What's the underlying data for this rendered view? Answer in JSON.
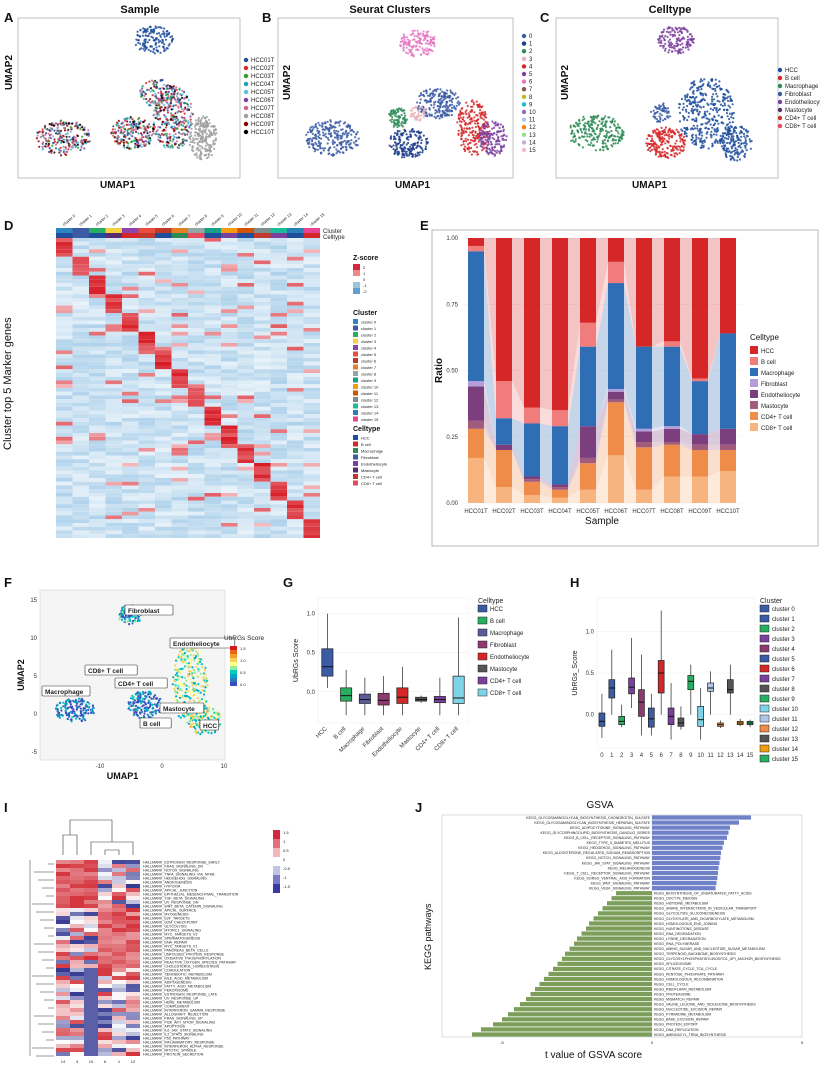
{
  "panels": {
    "a": {
      "letter": "A",
      "title": "Sample",
      "xlabel": "UMAP1",
      "ylabel": "UMAP2",
      "legend": [
        "HCC01T",
        "HCC02T",
        "HCC03T",
        "HCC04T",
        "HCC05T",
        "HCC06T",
        "HCC07T",
        "HCC08T",
        "HCC09T",
        "HCC10T"
      ],
      "colors": [
        "#1f4e9c",
        "#d62728",
        "#2ca02c",
        "#17a2b8",
        "#5bc0de",
        "#7b3f9e",
        "#d35f8d",
        "#9e9e9e",
        "#8b0000",
        "#000000"
      ]
    },
    "b": {
      "letter": "B",
      "title": "Seurat Clusters",
      "xlabel": "UMAP1",
      "ylabel": "UMAP2",
      "legend": [
        "0",
        "1",
        "2",
        "3",
        "4",
        "5",
        "6",
        "7",
        "8",
        "9",
        "10",
        "11",
        "12",
        "13",
        "14",
        "15"
      ],
      "colors": [
        "#3b5ba5",
        "#1f3e8c",
        "#2e8b57",
        "#e8b4b8",
        "#d62728",
        "#7b3f9e",
        "#e377c2",
        "#8c564b",
        "#bcbd22",
        "#17becf",
        "#9467bd",
        "#aec7e8",
        "#ff7f0e",
        "#98df8a",
        "#c5b0d5",
        "#f7b6d2"
      ]
    },
    "c": {
      "letter": "C",
      "title": "Celltype",
      "xlabel": "UMAP1",
      "ylabel": "UMAP2",
      "legend": [
        "HCC",
        "B cell",
        "Macrophage",
        "Fibroblast",
        "Endotheliocyte",
        "Mastocyte",
        "CD4+ T cell",
        "CD8+ T cell"
      ],
      "colors": [
        "#1f4e9c",
        "#d62728",
        "#2e8b57",
        "#3b5ba5",
        "#7b3f9e",
        "#5b2c6f",
        "#c0392b",
        "#e84a5f"
      ]
    },
    "d": {
      "letter": "D",
      "ylabel": "Cluster top 5 Marker genes",
      "clusters": [
        "cluster 0",
        "cluster 1",
        "cluster 2",
        "cluster 3",
        "cluster 4",
        "cluster 5",
        "cluster 6",
        "cluster 7",
        "cluster 8",
        "cluster 9",
        "cluster 10",
        "cluster 11",
        "cluster 12",
        "cluster 13",
        "cluster 14",
        "cluster 15"
      ],
      "row_labels": [
        "Cluster",
        "Celltype"
      ],
      "zscore_title": "Z-score",
      "zscore_ticks": [
        "2",
        "1",
        "0",
        "-1",
        "-2"
      ],
      "cluster_legend_title": "Cluster",
      "celltype_legend_title": "Celltype",
      "celltypes": [
        "HCC",
        "B cell",
        "Macrophage",
        "Fibroblast",
        "Endotheliocyte",
        "Mastocyte",
        "CD4+ T cell",
        "CD8+ T cell"
      ],
      "cluster_colors": [
        "#2e86c1",
        "#3b5ba5",
        "#27ae60",
        "#f4d03f",
        "#8e44ad",
        "#e74c3c",
        "#c0392b",
        "#e67e22",
        "#95a5a6",
        "#16a085",
        "#f39c12",
        "#d35400",
        "#7f8c8d",
        "#1abc9c",
        "#2980b9",
        "#e84393"
      ],
      "celltype_colors": [
        "#1f4e9c",
        "#d62728",
        "#2e8b57",
        "#3b5ba5",
        "#7b3f9e",
        "#5b2c6f",
        "#c0392b",
        "#e84a5f"
      ]
    },
    "e": {
      "letter": "E",
      "xlabel": "Sample",
      "ylabel": "Ratio",
      "legend_title": "Celltype"
    },
    "f": {
      "letter": "F",
      "xlabel": "UMAP1",
      "ylabel": "UMAP2",
      "legend_title": "UbRGs Score",
      "legend_ticks": [
        "1.5",
        "1.0",
        "0.5",
        "0.0"
      ],
      "labels": [
        "Fibroblast",
        "Endotheliocyte",
        "CD8+ T cell",
        "CD4+ T cell",
        "Macrophage",
        "Mastocyte",
        "B cell",
        "HCC"
      ],
      "xticks": [
        "-10",
        "0",
        "10"
      ],
      "yticks": [
        "15",
        "10",
        "5",
        "0",
        "-5"
      ]
    },
    "g": {
      "letter": "G",
      "ylabel": "UbRGs Score",
      "legend_title": "Celltype"
    },
    "h": {
      "letter": "H",
      "ylabel": "UbRGs_Score",
      "legend_title": "Cluster"
    },
    "i": {
      "letter": "I",
      "col_labels": [
        "14",
        "3",
        "10",
        "6",
        "1",
        "12"
      ],
      "legend_ticks": [
        "1.5",
        "1",
        "0.5",
        "0",
        "-0.5",
        "-1",
        "-1.5"
      ],
      "rows": [
        "HALLMARK_ESTROGEN_RESPONSE_EARLY",
        "HALLMARK_KRAS_SIGNALING_DN",
        "HALLMARK_NOTCH_SIGNALING",
        "HALLMARK_TNFA_SIGNALING_VIA_NFKB",
        "HALLMARK_HEDGEHOG_SIGNALING",
        "HALLMARK_ANGIOGENESIS",
        "HALLMARK_HYPOXIA",
        "HALLMARK_APICAL_JUNCTION",
        "HALLMARK_EPITHELIAL_MESENCHYMAL_TRANSITION",
        "HALLMARK_TGF_BETA_SIGNALING",
        "HALLMARK_UV_RESPONSE_DN",
        "HALLMARK_WNT_BETA_CATENIN_SIGNALING",
        "HALLMARK_APICAL_SURFACE",
        "HALLMARK_MYOGENESIS",
        "HALLMARK_E2F_TARGETS",
        "HALLMARK_G2M_CHECKPOINT",
        "HALLMARK_GLYCOLYSIS",
        "HALLMARK_MTORC1_SIGNALING",
        "HALLMARK_MYC_TARGETS_V2",
        "HALLMARK_SPERMATOGENESIS",
        "HALLMARK_DNA_REPAIR",
        "HALLMARK_MYC_TARGETS_V1",
        "HALLMARK_PANCREAS_BETA_CELLS",
        "HALLMARK_UNFOLDED_PROTEIN_RESPONSE",
        "HALLMARK_OXIDATIVE_PHOSPHORYLATION",
        "HALLMARK_REACTIVE_OXYGEN_SPECIES_PATHWAY",
        "HALLMARK_CHOLESTEROL_HOMEOSTASIS",
        "HALLMARK_COAGULATION",
        "HALLMARK_XENOBIOTIC_METABOLISM",
        "HALLMARK_BILE_ACID_METABOLISM",
        "HALLMARK_ADIPOGENESIS",
        "HALLMARK_FATTY_ACID_METABOLISM",
        "HALLMARK_PEROXISOME",
        "HALLMARK_ESTROGEN_RESPONSE_LATE",
        "HALLMARK_UV_RESPONSE_UP",
        "HALLMARK_HEME_METABOLISM",
        "HALLMARK_COMPLEMENT",
        "HALLMARK_INTERFERON_GAMMA_RESPONSE",
        "HALLMARK_ALLOGRAFT_REJECTION",
        "HALLMARK_KRAS_SIGNALING_UP",
        "HALLMARK_PI3K_AKT_MTOR_SIGNALING",
        "HALLMARK_APOPTOSIS",
        "HALLMARK_IL6_JAK_STAT3_SIGNALING",
        "HALLMARK_IL2_STAT5_SIGNALING",
        "HALLMARK_P53_PATHWAY",
        "HALLMARK_INFLAMMATORY_RESPONSE",
        "HALLMARK_INTERFERON_ALPHA_RESPONSE",
        "HALLMARK_MITOTIC_SPINDLE",
        "HALLMARK_PROTEIN_SECRETION"
      ]
    },
    "j": {
      "letter": "J",
      "title": "GSVA",
      "xlabel": "t value of GSVA score",
      "ylabel": "KEGG pathways",
      "xticks": [
        "-5",
        "0",
        "5"
      ]
    }
  },
  "chart_data": [
    {
      "type": "bar",
      "panel": "E",
      "stacked": true,
      "title": "",
      "xlabel": "Sample",
      "ylabel": "Ratio",
      "ylim": [
        0,
        1
      ],
      "yticks": [
        "0.00",
        "0.25",
        "0.50",
        "0.75",
        "1.00"
      ],
      "categories": [
        "HCC01T",
        "HCC02T",
        "HCC03T",
        "HCC04T",
        "HCC05T",
        "HCC06T",
        "HCC07T",
        "HCC08T",
        "HCC09T",
        "HCC10T"
      ],
      "series": [
        {
          "name": "CD8+ T cell",
          "color": "#f8b47f",
          "values": [
            0.17,
            0.06,
            0.03,
            0.02,
            0.05,
            0.18,
            0.05,
            0.1,
            0.1,
            0.12
          ]
        },
        {
          "name": "CD4+ T cell",
          "color": "#f08c4a",
          "values": [
            0.11,
            0.14,
            0.05,
            0.03,
            0.1,
            0.2,
            0.16,
            0.12,
            0.1,
            0.08
          ]
        },
        {
          "name": "Mastocyte",
          "color": "#a05c7a",
          "values": [
            0.03,
            0.0,
            0.01,
            0.01,
            0.02,
            0.01,
            0.02,
            0.01,
            0.02,
            0.02
          ]
        },
        {
          "name": "Endotheliocyte",
          "color": "#7b3f7e",
          "values": [
            0.13,
            0.02,
            0.01,
            0.01,
            0.12,
            0.03,
            0.04,
            0.05,
            0.04,
            0.06
          ]
        },
        {
          "name": "Fibroblast",
          "color": "#b39ddb",
          "values": [
            0.02,
            0.0,
            0.0,
            0.0,
            0.0,
            0.01,
            0.01,
            0.01,
            0.0,
            0.0
          ]
        },
        {
          "name": "Macrophage",
          "color": "#2f6db5",
          "values": [
            0.49,
            0.1,
            0.2,
            0.22,
            0.3,
            0.4,
            0.31,
            0.3,
            0.2,
            0.36
          ]
        },
        {
          "name": "B cell",
          "color": "#f07c7c",
          "values": [
            0.02,
            0.14,
            0.06,
            0.06,
            0.09,
            0.08,
            0.0,
            0.02,
            0.01,
            0.0
          ]
        },
        {
          "name": "HCC",
          "color": "#d62728",
          "values": [
            0.03,
            0.54,
            0.64,
            0.65,
            0.32,
            0.09,
            0.41,
            0.39,
            0.53,
            0.36
          ]
        }
      ]
    },
    {
      "type": "box",
      "panel": "G",
      "ylabel": "UbRGs Score",
      "ylim": [
        -0.4,
        1.2
      ],
      "yticks": [
        "1.0",
        "0.5",
        "0.0"
      ],
      "categories": [
        "HCC",
        "B cell",
        "Macrophage",
        "Fibroblast",
        "Endotheliocyte",
        "Mastocyte",
        "CD4+ T cell",
        "CD8+ T cell"
      ],
      "colors": [
        "#3b5ba5",
        "#27ae60",
        "#5b5b9b",
        "#8e3a6f",
        "#d62728",
        "#555555",
        "#7b3f9e",
        "#7fd3e6"
      ],
      "stats": [
        {
          "min": 0.05,
          "q1": 0.2,
          "median": 0.32,
          "q3": 0.55,
          "max": 1.0
        },
        {
          "min": -0.3,
          "q1": -0.12,
          "median": -0.05,
          "q3": 0.05,
          "max": 0.28
        },
        {
          "min": -0.3,
          "q1": -0.15,
          "median": -0.1,
          "q3": -0.03,
          "max": 0.18
        },
        {
          "min": -0.3,
          "q1": -0.17,
          "median": -0.11,
          "q3": -0.02,
          "max": 0.2
        },
        {
          "min": -0.3,
          "q1": -0.15,
          "median": -0.07,
          "q3": 0.05,
          "max": 0.32
        },
        {
          "min": -0.14,
          "q1": -0.12,
          "median": -0.1,
          "q3": -0.07,
          "max": -0.05
        },
        {
          "min": -0.3,
          "q1": -0.14,
          "median": -0.1,
          "q3": -0.06,
          "max": 0.18
        },
        {
          "min": -0.3,
          "q1": -0.15,
          "median": -0.08,
          "q3": 0.2,
          "max": 0.95
        }
      ]
    },
    {
      "type": "box",
      "panel": "H",
      "ylabel": "UbRGs_Score",
      "ylim": [
        -0.4,
        1.4
      ],
      "yticks": [
        "1.0",
        "0.5",
        "0.0"
      ],
      "categories": [
        "0",
        "1",
        "2",
        "3",
        "4",
        "5",
        "6",
        "7",
        "8",
        "9",
        "10",
        "11",
        "12",
        "13",
        "14",
        "15"
      ],
      "colors": [
        "#3b5ba5",
        "#3b5ba5",
        "#27ae60",
        "#7b3f9e",
        "#8e3a6f",
        "#3b5ba5",
        "#d62728",
        "#7b3f9e",
        "#555555",
        "#27ae60",
        "#7fd3e6",
        "#aec7e8",
        "#f08c4a",
        "#555555",
        "#f39c12",
        "#27ae60"
      ],
      "stats": [
        {
          "min": -0.28,
          "q1": -0.14,
          "median": -0.08,
          "q3": 0.02,
          "max": 0.25
        },
        {
          "min": 0.0,
          "q1": 0.2,
          "median": 0.32,
          "q3": 0.42,
          "max": 0.78
        },
        {
          "min": -0.15,
          "q1": -0.12,
          "median": -0.08,
          "q3": -0.02,
          "max": 0.12
        },
        {
          "min": 0.08,
          "q1": 0.25,
          "median": 0.33,
          "q3": 0.44,
          "max": 0.92
        },
        {
          "min": -0.25,
          "q1": -0.02,
          "median": 0.15,
          "q3": 0.3,
          "max": 0.72
        },
        {
          "min": -0.25,
          "q1": -0.15,
          "median": -0.05,
          "q3": 0.08,
          "max": 0.25
        },
        {
          "min": 0.0,
          "q1": 0.26,
          "median": 0.5,
          "q3": 0.65,
          "max": 1.25
        },
        {
          "min": -0.3,
          "q1": -0.12,
          "median": -0.02,
          "q3": 0.08,
          "max": 0.38
        },
        {
          "min": -0.18,
          "q1": -0.14,
          "median": -0.1,
          "q3": -0.04,
          "max": 0.1
        },
        {
          "min": 0.0,
          "q1": 0.3,
          "median": 0.4,
          "q3": 0.47,
          "max": 0.6
        },
        {
          "min": -0.3,
          "q1": -0.14,
          "median": -0.06,
          "q3": 0.1,
          "max": 0.32
        },
        {
          "min": 0.0,
          "q1": 0.28,
          "median": 0.32,
          "q3": 0.38,
          "max": 0.52
        },
        {
          "min": -0.16,
          "q1": -0.14,
          "median": -0.12,
          "q3": -0.1,
          "max": -0.07
        },
        {
          "min": 0.0,
          "q1": 0.26,
          "median": 0.3,
          "q3": 0.42,
          "max": 0.6
        },
        {
          "min": -0.14,
          "q1": -0.12,
          "median": -0.1,
          "q3": -0.08,
          "max": -0.05
        },
        {
          "min": -0.15,
          "q1": -0.12,
          "median": -0.1,
          "q3": -0.08,
          "max": -0.06
        }
      ]
    },
    {
      "type": "bar",
      "panel": "J",
      "orientation": "horizontal",
      "title": "GSVA",
      "xlabel": "t value of GSVA score",
      "ylabel": "KEGG pathways",
      "xlim": [
        -7,
        5
      ],
      "positive_color": "#6f82c7",
      "negative_color": "#7c9e5a",
      "categories": [
        "KEGG_GLYCOSAMINOGLYCAN_BIOSYNTHESIS_CHONDROITIN_SULFATE",
        "KEGG_GLYCOSAMINOGLYCAN_BIOSYNTHESIS_HEPARAN_SULFATE",
        "KEGG_ADIPOCYTOKINE_SIGNALING_PATHWAY",
        "KEGG_GLYCOSPHINGOLIPID_BIOSYNTHESIS_GANGLIO_SERIES",
        "KEGG_B_CELL_RECEPTOR_SIGNALING_PATHWAY",
        "KEGG_TYPE_II_DIABETES_MELLITUS",
        "KEGG_HEDGEHOG_SIGNALING_PATHWAY",
        "KEGG_ALDOSTERONE_REGULATED_SODIUM_REABSORPTION",
        "KEGG_NOTCH_SIGNALING_PATHWAY",
        "KEGG_JAK_STAT_SIGNALING_PATHWAY",
        "KEGG_MELANOGENESIS",
        "KEGG_T_CELL_RECEPTOR_SIGNALING_PATHWAY",
        "KEGG_DORSO_VENTRAL_AXIS_FORMATION",
        "KEGG_WNT_SIGNALING_PATHWAY",
        "KEGG_VEGF_SIGNALING_PATHWAY",
        "KEGG_BIOSYNTHESIS_OF_UNSATURATED_FATTY_ACIDS",
        "KEGG_OOCYTE_MEIOSIS",
        "KEGG_HISTIDINE_METABOLISM",
        "KEGG_SNARE_INTERACTIONS_IN_VESICULAR_TRANSPORT",
        "KEGG_GLYCOLYSIS_GLUCONEOGENESIS",
        "KEGG_GLYOXYLATE_AND_DICARBOXYLATE_METABOLISM",
        "KEGG_HOMOLOGOUS_END_JOINING",
        "KEGG_HUNTINGTONS_DISEASE",
        "KEGG_RNA_DEGRADATION",
        "KEGG_LYSINE_DEGRADATION",
        "KEGG_RNA_POLYMERASE",
        "KEGG_AMINO_SUGAR_AND_NUCLEOTIDE_SUGAR_METABOLISM",
        "KEGG_TERPENOID_BACKBONE_BIOSYNTHESIS",
        "KEGG_GLYCOSYLPHOSPHATIDYLINOSITOL_GPI_ANCHOR_BIOSYNTHESIS",
        "KEGG_SPLICEOSOME",
        "KEGG_CITRATE_CYCLE_TCA_CYCLE",
        "KEGG_PENTOSE_PHOSPHATE_PATHWAY",
        "KEGG_HOMOLOGOUS_RECOMBINATION",
        "KEGG_CELL_CYCLE",
        "KEGG_RIBOFLAVIN_METABOLISM",
        "KEGG_PROTEASOME",
        "KEGG_MISMATCH_REPAIR",
        "KEGG_VALINE_LEUCINE_AND_ISOLEUCINE_BIOSYNTHESIS",
        "KEGG_NUCLEOTIDE_EXCISION_REPAIR",
        "KEGG_PYRIMIDINE_METABOLISM",
        "KEGG_BASE_EXCISION_REPAIR",
        "KEGG_PROTEIN_EXPORT",
        "KEGG_DNA_REPLICATION",
        "KEGG_AMINOACYL_TRNA_BIOSYNTHESIS"
      ],
      "values": [
        3.3,
        2.9,
        2.6,
        2.55,
        2.5,
        2.4,
        2.35,
        2.3,
        2.28,
        2.25,
        2.22,
        2.2,
        2.18,
        2.15,
        2.12,
        -1.2,
        -1.35,
        -1.5,
        -1.65,
        -1.8,
        -1.95,
        -2.1,
        -2.2,
        -2.35,
        -2.5,
        -2.6,
        -2.75,
        -2.9,
        -3.0,
        -3.15,
        -3.3,
        -3.45,
        -3.6,
        -3.75,
        -3.9,
        -4.05,
        -4.2,
        -4.4,
        -4.6,
        -4.8,
        -5.0,
        -5.3,
        -5.7,
        -6.0
      ]
    }
  ]
}
